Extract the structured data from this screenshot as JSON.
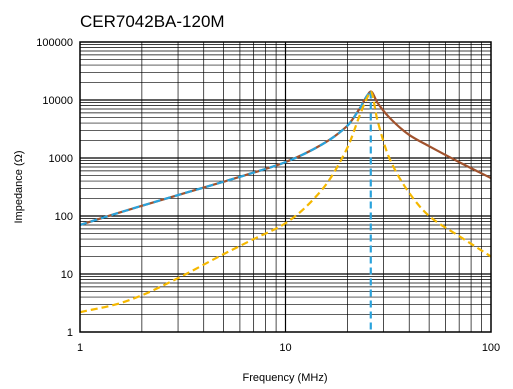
{
  "chart_data": {
    "type": "line",
    "title": "CER7042BA-120M",
    "xlabel": "Frequency (MHz)",
    "ylabel": "Impedance (Ω)",
    "x_scale": "log",
    "y_scale": "log",
    "xlim": [
      1,
      100
    ],
    "ylim": [
      1,
      100000
    ],
    "grid": true,
    "x_ticks": [
      1,
      10,
      100
    ],
    "x_tick_labels": [
      "1",
      "10",
      "100"
    ],
    "y_ticks": [
      1,
      10,
      100,
      1000,
      10000,
      100000
    ],
    "y_tick_labels": [
      "1",
      "10",
      "100",
      "1000",
      "10000",
      "100000"
    ],
    "series": [
      {
        "color": "#a0522d",
        "style": "solid",
        "x": [
          1,
          1.5,
          2,
          3,
          5,
          7,
          10,
          15,
          20,
          23,
          25,
          26,
          28,
          32,
          40,
          50,
          70,
          100
        ],
        "y": [
          70,
          110,
          150,
          230,
          390,
          560,
          850,
          1700,
          3600,
          7200,
          12000,
          14000,
          9000,
          5000,
          2500,
          1600,
          850,
          450
        ]
      },
      {
        "color": "#2aa3dc",
        "style": "dashed",
        "x": [
          1,
          1.5,
          2,
          3,
          5,
          7,
          10,
          15,
          20,
          23,
          25,
          26
        ],
        "y": [
          70,
          110,
          150,
          230,
          390,
          560,
          850,
          1700,
          3600,
          7200,
          12000,
          14000
        ]
      },
      {
        "color": "#2aa3dc",
        "style": "dashed",
        "x": [
          26,
          26
        ],
        "y": [
          14000,
          1
        ]
      },
      {
        "color": "#f5b800",
        "style": "dashed",
        "x": [
          1,
          1.5,
          2,
          3,
          5,
          7,
          10,
          15,
          20,
          23,
          25,
          26,
          28,
          32,
          40,
          50,
          70,
          100
        ],
        "y": [
          2.2,
          3.0,
          4.3,
          8.5,
          22,
          40,
          75,
          280,
          1500,
          5500,
          11000,
          14000,
          4500,
          1000,
          250,
          100,
          45,
          20
        ]
      }
    ]
  }
}
